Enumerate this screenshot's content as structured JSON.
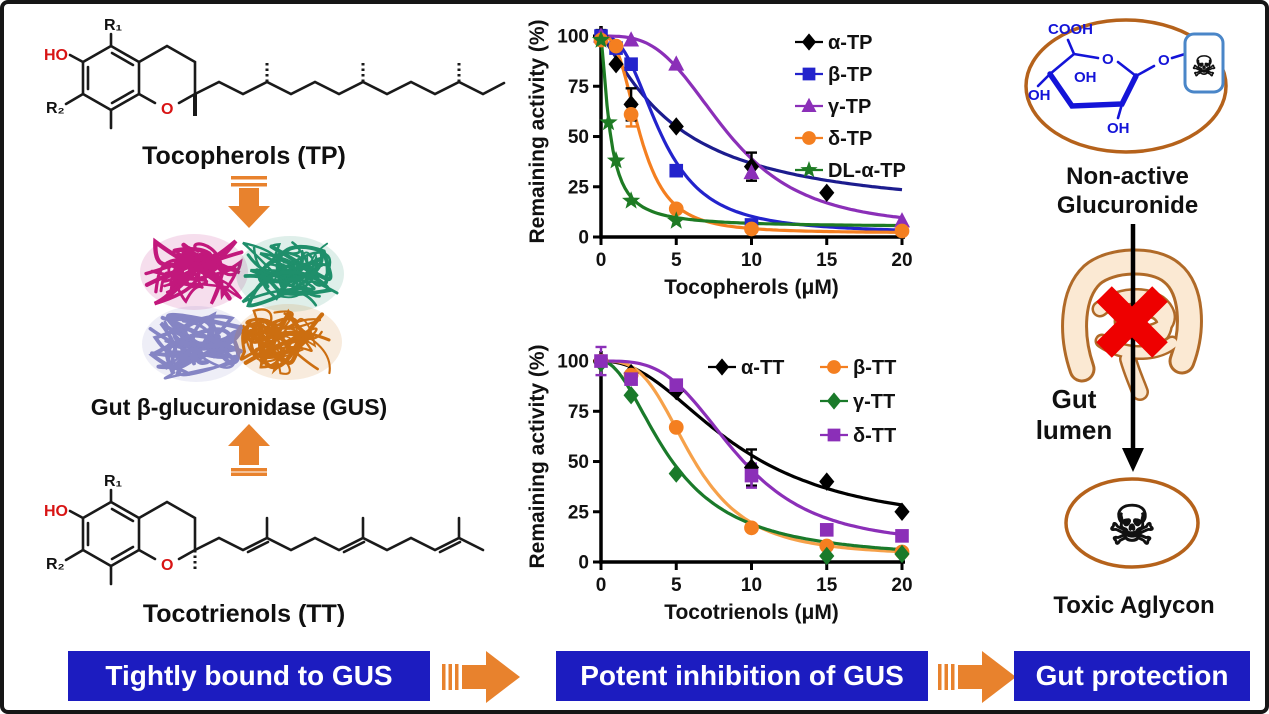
{
  "left": {
    "tp_label": "Tocopherols (TP)",
    "gus_label": "Gut β-glucuronidase (GUS)",
    "tt_label": "Tocotrienols (TT)"
  },
  "structures": {
    "ho": "HO",
    "r1": "R₁",
    "r2": "R₂",
    "o": "O"
  },
  "right": {
    "nonactive_line1": "Non-active",
    "nonactive_line2": "Glucuronide",
    "gut_line1": "Gut",
    "gut_line2": "lumen",
    "toxic_label": "Toxic Aglycon"
  },
  "sugar": {
    "cooh": "COOH",
    "ring_o": "O",
    "link_o": "O",
    "oh_left": "OH",
    "oh_mid": "OH",
    "oh_bottom": "OH"
  },
  "icons": {
    "skull": "☠"
  },
  "banners": [
    {
      "label": "Tightly bound to GUS"
    },
    {
      "label": "Potent inhibition of GUS"
    },
    {
      "label": "Gut protection"
    }
  ],
  "colors": {
    "banner_blue": "#1c1cc0",
    "arrow_orange": "#e8822d",
    "ellipse_brown": "#b5621b",
    "chem_blue": "#1414d8",
    "skull_red": "#e60000",
    "cross_red": "#ee0000",
    "ho_red": "#d81414",
    "intestine_fill": "#fbe9d3",
    "intestine_line": "#b06a28",
    "bond_black": "#1a1a1a",
    "protein_pink": "#c2187c",
    "protein_teal": "#1f8f6b",
    "protein_slate": "#8585c4",
    "protein_orange": "#cc6e10"
  },
  "chart_data": [
    {
      "type": "scatter",
      "title": "",
      "xlabel": "Tocopherols (μM)",
      "ylabel": "Remaining activity (%)",
      "xlim": [
        0,
        20
      ],
      "ylim": [
        0,
        105
      ],
      "xticks": [
        0,
        5,
        10,
        15,
        20
      ],
      "yticks": [
        0,
        25,
        50,
        75,
        100
      ],
      "grid": false,
      "legend_position": "top-right",
      "legend_cfg": {
        "colx": [
          282
        ],
        "y0": 30,
        "dy": 32,
        "line": true
      },
      "series": [
        {
          "name": "α-TP",
          "marker": "diamond",
          "marker_color": "#000000",
          "line_color": "#1c1c8e",
          "points": [
            [
              0,
              100
            ],
            [
              1,
              86
            ],
            [
              2,
              66
            ],
            [
              5,
              55
            ],
            [
              10,
              35
            ],
            [
              15,
              22
            ]
          ],
          "errors": [
            3,
            0,
            8,
            0,
            7,
            0
          ],
          "fit": {
            "top": 100,
            "bottom": 10,
            "ic50": 5.0,
            "hill": 1.25
          },
          "legend": [
            0,
            0
          ]
        },
        {
          "name": "β-TP",
          "marker": "square",
          "marker_color": "#2323cc",
          "line_color": "#2323cc",
          "points": [
            [
              0,
              100
            ],
            [
              1,
              94
            ],
            [
              2,
              86
            ],
            [
              5,
              33
            ],
            [
              10,
              6
            ]
          ],
          "errors": [
            0,
            0,
            0,
            0,
            0
          ],
          "fit": {
            "top": 100,
            "bottom": 2,
            "ic50": 4.0,
            "hill": 2.6
          },
          "legend": [
            1,
            0
          ]
        },
        {
          "name": "γ-TP",
          "marker": "triangle",
          "marker_color": "#8b2fb8",
          "line_color": "#8b2fb8",
          "points": [
            [
              0,
              100
            ],
            [
              2,
              98
            ],
            [
              5,
              86
            ],
            [
              10,
              32
            ],
            [
              20,
              8
            ]
          ],
          "errors": [
            0,
            0,
            0,
            0,
            0
          ],
          "fit": {
            "top": 100,
            "bottom": 4,
            "ic50": 8.4,
            "hill": 3.2
          },
          "legend": [
            2,
            0
          ]
        },
        {
          "name": "δ-TP",
          "marker": "circle",
          "marker_color": "#f47f20",
          "line_color": "#f47f20",
          "points": [
            [
              0,
              98
            ],
            [
              1,
              95
            ],
            [
              2,
              61
            ],
            [
              5,
              14
            ],
            [
              10,
              4
            ],
            [
              20,
              3
            ]
          ],
          "errors": [
            0,
            0,
            6,
            0,
            0,
            0
          ],
          "fit": {
            "top": 100,
            "bottom": 2,
            "ic50": 2.6,
            "hill": 2.8
          },
          "legend": [
            3,
            0
          ]
        },
        {
          "name": "DL-α-TP",
          "marker": "star",
          "marker_color": "#1e7b24",
          "line_color": "#1e7b24",
          "points": [
            [
              0,
              98
            ],
            [
              0.5,
              57
            ],
            [
              1,
              38
            ],
            [
              2,
              18
            ],
            [
              5,
              8
            ]
          ],
          "errors": [
            0,
            0,
            0,
            0,
            0
          ],
          "fit": {
            "top": 100,
            "bottom": 5,
            "ic50": 0.6,
            "hill": 1.4
          },
          "legend": [
            4,
            0
          ]
        }
      ]
    },
    {
      "type": "scatter",
      "title": "",
      "xlabel": "Tocotrienols (μM)",
      "ylabel": "Remaining activity (%)",
      "xlim": [
        0,
        20
      ],
      "ylim": [
        0,
        105
      ],
      "xticks": [
        0,
        5,
        10,
        15,
        20
      ],
      "yticks": [
        0,
        25,
        50,
        75,
        100
      ],
      "grid": false,
      "legend_position": "top-right",
      "legend_cfg": {
        "colx": [
          195,
          307
        ],
        "y0": 30,
        "dy": 34,
        "line": true
      },
      "series": [
        {
          "name": "α-TT",
          "marker": "diamond",
          "marker_color": "#000000",
          "line_color": "#000000",
          "points": [
            [
              0,
              100
            ],
            [
              2,
              94
            ],
            [
              5,
              85
            ],
            [
              10,
              47
            ],
            [
              15,
              40
            ],
            [
              20,
              25
            ]
          ],
          "errors": [
            0,
            0,
            0,
            9,
            0,
            0
          ],
          "fit": {
            "top": 100,
            "bottom": 16,
            "ic50": 9.0,
            "hill": 2.2
          },
          "legend": [
            0,
            0
          ]
        },
        {
          "name": "β-TT",
          "marker": "circle",
          "marker_color": "#f47f20",
          "line_color": "#f6a14a",
          "points": [
            [
              0,
              100
            ],
            [
              2,
              93
            ],
            [
              5,
              67
            ],
            [
              10,
              17
            ],
            [
              15,
              8
            ],
            [
              20,
              5
            ]
          ],
          "errors": [
            0,
            0,
            0,
            0,
            0,
            0
          ],
          "fit": {
            "top": 100,
            "bottom": 3,
            "ic50": 6.1,
            "hill": 3.2
          },
          "legend": [
            0,
            1
          ]
        },
        {
          "name": "γ-TT",
          "marker": "diamond",
          "marker_color": "#1a7a2a",
          "line_color": "#1a7a2a",
          "points": [
            [
              0,
              99
            ],
            [
              2,
              83
            ],
            [
              5,
              44
            ],
            [
              15,
              3
            ],
            [
              20,
              4
            ]
          ],
          "errors": [
            0,
            0,
            0,
            0,
            0
          ],
          "fit": {
            "top": 100,
            "bottom": 1,
            "ic50": 4.7,
            "hill": 2.0
          },
          "legend": [
            1,
            1
          ]
        },
        {
          "name": "δ-TT",
          "marker": "square",
          "marker_color": "#8b2fb8",
          "line_color": "#8b2fb8",
          "points": [
            [
              0,
              100
            ],
            [
              2,
              91
            ],
            [
              5,
              88
            ],
            [
              10,
              43
            ],
            [
              15,
              16
            ],
            [
              20,
              13
            ]
          ],
          "errors": [
            7,
            0,
            0,
            6,
            0,
            0
          ],
          "fit": {
            "top": 100,
            "bottom": 8,
            "ic50": 9.0,
            "hill": 3.4
          },
          "legend": [
            2,
            1
          ]
        }
      ]
    }
  ]
}
